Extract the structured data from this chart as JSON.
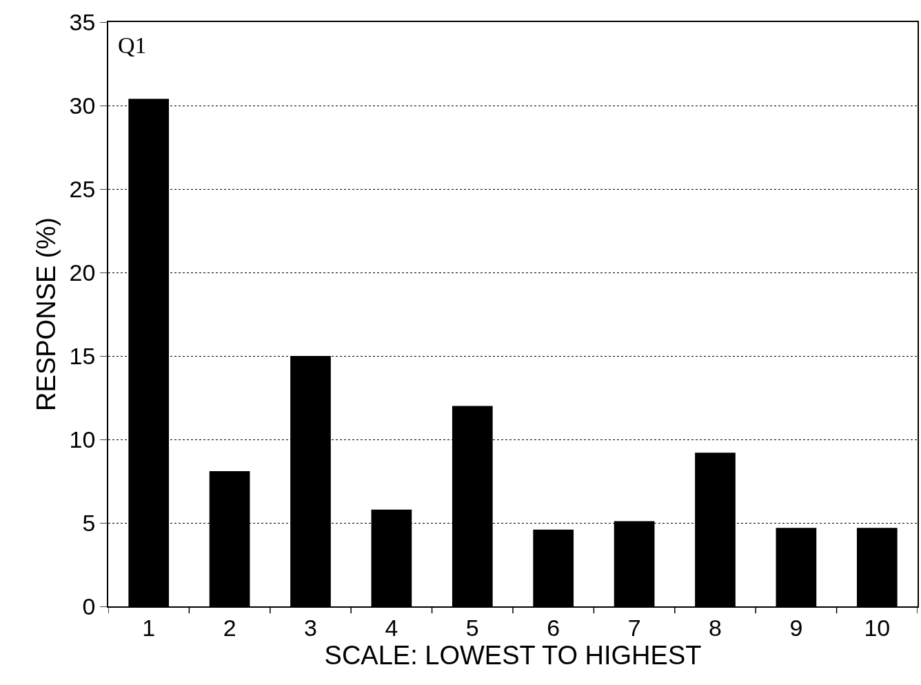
{
  "chart_data": {
    "type": "bar",
    "xlabel": "SCALE: LOWEST TO HIGHEST",
    "ylabel": "RESPONSE (%)",
    "annotations": [
      "Q1"
    ],
    "categories": [
      "1",
      "2",
      "3",
      "4",
      "5",
      "6",
      "7",
      "8",
      "9",
      "10"
    ],
    "values": [
      30.4,
      8.1,
      15.0,
      5.8,
      12.0,
      4.6,
      5.1,
      9.2,
      4.7,
      4.7
    ],
    "color": "#000000",
    "ylim": [
      0,
      35
    ],
    "yticks": [
      0,
      5,
      10,
      15,
      20,
      25,
      30,
      35
    ],
    "grid": "y",
    "legend": false
  }
}
